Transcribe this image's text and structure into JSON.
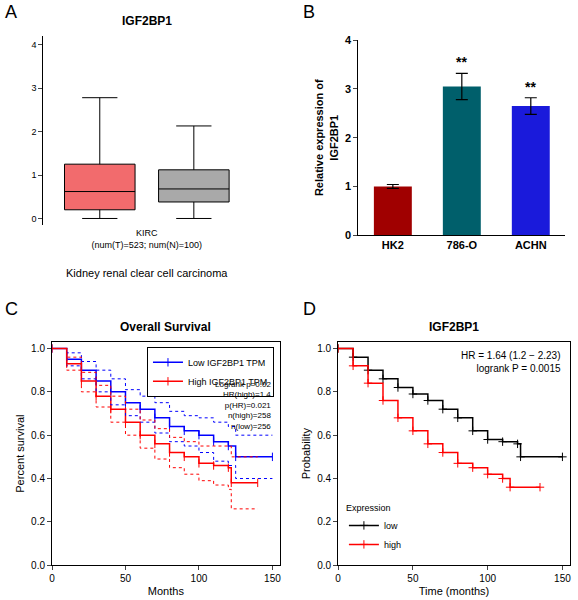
{
  "chart_data": [
    {
      "panel": "A",
      "type": "box",
      "title": "IGF2BP1",
      "categories": [
        null,
        null
      ],
      "series": [
        {
          "color": "#F26B6D",
          "q1": 0.2,
          "median": 0.62,
          "q3": 1.25,
          "lower": 0,
          "upper": 2.78
        },
        {
          "color": "#A9A9A9",
          "q1": 0.38,
          "median": 0.68,
          "q3": 1.12,
          "lower": 0,
          "upper": 2.13
        }
      ],
      "xlabel": "KIRC\n(num(T)=523; num(N)=100)",
      "caption": "Kidney renal clear cell carcinoma",
      "ylim": [
        -0.15,
        4.2
      ],
      "yticks": [
        0,
        1,
        2,
        3,
        4
      ],
      "grid": false
    },
    {
      "panel": "B",
      "type": "bar",
      "categories": [
        "HK2",
        "786-O",
        "ACHN"
      ],
      "values": [
        1,
        3.05,
        2.65
      ],
      "errors": [
        0.04,
        0.27,
        0.17
      ],
      "colors": [
        "#A00000",
        "#005F6B",
        "#1A1ADB"
      ],
      "ylabel": "Relative expression of\nIGF2BP1",
      "ylim": [
        0,
        4
      ],
      "yticks": [
        0,
        1,
        2,
        3,
        4
      ],
      "grid": false,
      "annotations": [
        {
          "category": "786-O",
          "text": "**"
        },
        {
          "category": "ACHN",
          "text": "**"
        }
      ]
    },
    {
      "panel": "C",
      "type": "survival",
      "title": "Overall Survival",
      "xlabel": "Months",
      "ylabel": "Percent survival",
      "xlim": [
        0,
        155
      ],
      "xticks": [
        0,
        50,
        100,
        150
      ],
      "ylim": [
        0,
        1.03
      ],
      "yticks": [
        {
          "value": 0,
          "label": "0.0"
        },
        {
          "value": 0.2,
          "label": "0.2"
        },
        {
          "value": 0.4,
          "label": "0.4"
        },
        {
          "value": 0.6,
          "label": "0.6"
        },
        {
          "value": 0.8,
          "label": "0.8"
        },
        {
          "value": 1,
          "label": "1.0"
        }
      ],
      "grid": false,
      "legend": "upper right",
      "stats": [
        "Logrank p=0.02",
        "HR(high)=1.4",
        "p(HR)=0.021",
        "n(high)=258",
        "n(low)=256"
      ],
      "series": [
        {
          "name": "Low IGF2BP1 TPM",
          "color": "#0000FF",
          "line_style": "solid",
          "marker": "tick",
          "x": [
            0,
            10,
            20,
            30,
            40,
            50,
            60,
            70,
            80,
            90,
            100,
            110,
            120,
            125,
            150
          ],
          "values": [
            1,
            0.95,
            0.9,
            0.85,
            0.8,
            0.75,
            0.72,
            0.68,
            0.64,
            0.62,
            0.6,
            0.57,
            0.55,
            0.5,
            0.5
          ]
        },
        {
          "name": "High IGF2BP1 TPM",
          "color": "#FF0000",
          "line_style": "solid",
          "marker": "tick",
          "x": [
            0,
            10,
            20,
            30,
            40,
            50,
            60,
            70,
            80,
            90,
            100,
            110,
            120,
            122,
            140
          ],
          "values": [
            1,
            0.93,
            0.85,
            0.78,
            0.72,
            0.66,
            0.6,
            0.56,
            0.52,
            0.5,
            0.47,
            0.46,
            0.45,
            0.38,
            0.38
          ]
        },
        {
          "color": "#0000FF",
          "line_style": "dotted",
          "x": [
            0,
            10,
            20,
            30,
            40,
            50,
            60,
            70,
            80,
            90,
            100,
            110,
            120,
            125,
            150
          ],
          "values": [
            1,
            0.98,
            0.94,
            0.9,
            0.86,
            0.81,
            0.78,
            0.75,
            0.71,
            0.69,
            0.68,
            0.66,
            0.64,
            0.6,
            0.6
          ]
        },
        {
          "color": "#0000FF",
          "line_style": "dotted",
          "x": [
            0,
            10,
            20,
            30,
            40,
            50,
            60,
            70,
            80,
            90,
            100,
            110,
            120,
            125,
            150
          ],
          "values": [
            1,
            0.92,
            0.86,
            0.8,
            0.74,
            0.69,
            0.66,
            0.61,
            0.57,
            0.55,
            0.52,
            0.48,
            0.46,
            0.4,
            0.4
          ]
        },
        {
          "color": "#FF0000",
          "line_style": "dotted",
          "x": [
            0,
            10,
            20,
            30,
            40,
            50,
            60,
            70,
            80,
            90,
            100,
            110,
            120,
            122,
            140
          ],
          "values": [
            1,
            0.96,
            0.89,
            0.83,
            0.78,
            0.72,
            0.67,
            0.63,
            0.59,
            0.57,
            0.55,
            0.55,
            0.55,
            0.5,
            0.5
          ]
        },
        {
          "color": "#FF0000",
          "line_style": "dotted",
          "x": [
            0,
            10,
            20,
            30,
            40,
            50,
            60,
            70,
            80,
            90,
            100,
            110,
            120,
            122,
            140
          ],
          "values": [
            1,
            0.9,
            0.8,
            0.73,
            0.66,
            0.6,
            0.54,
            0.49,
            0.45,
            0.42,
            0.39,
            0.37,
            0.35,
            0.26,
            0.26
          ]
        }
      ]
    },
    {
      "panel": "D",
      "type": "survival",
      "title": "IGF2BP1",
      "xlabel": "Time (months)",
      "ylabel": "Probability",
      "xlim": [
        0,
        155
      ],
      "xticks": [
        0,
        50,
        100,
        150
      ],
      "ylim": [
        0,
        1.03
      ],
      "yticks": [
        {
          "value": 0,
          "label": "0.0"
        },
        {
          "value": 0.2,
          "label": "0.2"
        },
        {
          "value": 0.4,
          "label": "0.4"
        },
        {
          "value": 0.6,
          "label": "0.6"
        },
        {
          "value": 0.8,
          "label": "0.8"
        },
        {
          "value": 1,
          "label": "1.0"
        }
      ],
      "grid": false,
      "legend": "lower left",
      "legend_title": "Expression",
      "annotations": [
        "HR = 1.64 (1.2 − 2.23)",
        "logrank P = 0.0015"
      ],
      "series": [
        {
          "name": "low",
          "color": "#000000",
          "line_style": "solid",
          "marker": "plus",
          "x": [
            0,
            10,
            20,
            30,
            40,
            50,
            60,
            70,
            80,
            90,
            100,
            110,
            120,
            122,
            150
          ],
          "values": [
            1,
            0.96,
            0.9,
            0.86,
            0.82,
            0.79,
            0.76,
            0.72,
            0.68,
            0.62,
            0.58,
            0.57,
            0.56,
            0.5,
            0.5
          ]
        },
        {
          "name": "high",
          "color": "#FF0000",
          "line_style": "solid",
          "marker": "plus",
          "x": [
            0,
            10,
            20,
            30,
            40,
            50,
            60,
            70,
            80,
            90,
            100,
            110,
            115,
            135
          ],
          "values": [
            1,
            0.92,
            0.84,
            0.76,
            0.68,
            0.62,
            0.56,
            0.52,
            0.47,
            0.45,
            0.42,
            0.4,
            0.36,
            0.36
          ]
        }
      ]
    }
  ]
}
